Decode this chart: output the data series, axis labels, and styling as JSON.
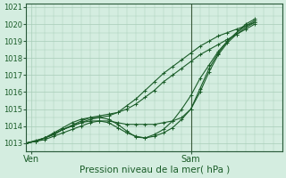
{
  "title": "",
  "xlabel": "Pression niveau de la mer( hPa )",
  "ylabel": "",
  "background_color": "#d4ede0",
  "grid_color": "#a8cdb8",
  "line_color": "#1a5c28",
  "ylim": [
    1012.5,
    1021.2
  ],
  "xlim": [
    0,
    56
  ],
  "xtick_positions": [
    1,
    36
  ],
  "xtick_labels": [
    "Ven",
    "Sam"
  ],
  "ytick_positions": [
    1013,
    1014,
    1015,
    1016,
    1017,
    1018,
    1019,
    1020,
    1021
  ],
  "vline_x": 36,
  "series_x_end": 50,
  "series": [
    {
      "x": [
        0,
        2,
        4,
        6,
        8,
        10,
        12,
        14,
        16,
        18,
        20,
        22,
        24,
        26,
        28,
        30,
        32,
        34,
        36,
        38,
        40,
        42,
        44,
        46,
        48,
        50
      ],
      "y": [
        1013.0,
        1013.1,
        1013.2,
        1013.4,
        1013.6,
        1013.8,
        1014.0,
        1014.2,
        1014.3,
        1014.3,
        1014.2,
        1014.1,
        1014.1,
        1014.1,
        1014.1,
        1014.2,
        1014.3,
        1014.5,
        1015.0,
        1016.0,
        1017.2,
        1018.2,
        1018.9,
        1019.4,
        1019.8,
        1020.1
      ]
    },
    {
      "x": [
        0,
        2,
        4,
        6,
        8,
        10,
        12,
        14,
        16,
        18,
        20,
        22,
        24,
        26,
        28,
        30,
        32,
        34,
        36,
        38,
        40,
        42,
        44,
        46,
        48,
        50
      ],
      "y": [
        1013.0,
        1013.1,
        1013.3,
        1013.5,
        1013.8,
        1014.0,
        1014.2,
        1014.3,
        1014.3,
        1014.2,
        1013.9,
        1013.6,
        1013.4,
        1013.3,
        1013.4,
        1013.6,
        1013.9,
        1014.4,
        1015.0,
        1016.2,
        1017.4,
        1018.3,
        1019.0,
        1019.5,
        1019.9,
        1020.2
      ]
    },
    {
      "x": [
        0,
        2,
        4,
        6,
        8,
        10,
        12,
        14,
        16,
        18,
        20,
        22,
        24,
        26,
        28,
        30,
        32,
        34,
        36,
        38,
        40,
        42,
        44,
        46,
        48,
        50
      ],
      "y": [
        1013.0,
        1013.1,
        1013.3,
        1013.6,
        1013.9,
        1014.2,
        1014.4,
        1014.5,
        1014.5,
        1014.4,
        1014.1,
        1013.7,
        1013.35,
        1013.3,
        1013.5,
        1013.8,
        1014.3,
        1015.0,
        1015.8,
        1016.8,
        1017.6,
        1018.4,
        1019.0,
        1019.5,
        1020.0,
        1020.3
      ]
    },
    {
      "x": [
        0,
        2,
        4,
        6,
        8,
        10,
        12,
        14,
        16,
        18,
        20,
        22,
        24,
        26,
        28,
        30,
        32,
        34,
        36,
        38,
        40,
        42,
        44,
        46,
        48,
        50
      ],
      "y": [
        1013.0,
        1013.1,
        1013.3,
        1013.5,
        1013.8,
        1014.0,
        1014.2,
        1014.4,
        1014.5,
        1014.6,
        1014.8,
        1015.2,
        1015.6,
        1016.1,
        1016.6,
        1017.1,
        1017.5,
        1017.9,
        1018.3,
        1018.7,
        1019.0,
        1019.3,
        1019.5,
        1019.7,
        1019.9,
        1020.1
      ]
    },
    {
      "x": [
        0,
        2,
        4,
        6,
        8,
        10,
        12,
        14,
        16,
        18,
        20,
        22,
        24,
        26,
        28,
        30,
        32,
        34,
        36,
        38,
        40,
        42,
        44,
        46,
        48,
        50
      ],
      "y": [
        1013.0,
        1013.15,
        1013.3,
        1013.55,
        1013.8,
        1014.05,
        1014.3,
        1014.5,
        1014.6,
        1014.7,
        1014.8,
        1015.0,
        1015.3,
        1015.7,
        1016.1,
        1016.6,
        1017.0,
        1017.4,
        1017.8,
        1018.2,
        1018.5,
        1018.8,
        1019.1,
        1019.4,
        1019.7,
        1020.0
      ]
    }
  ]
}
